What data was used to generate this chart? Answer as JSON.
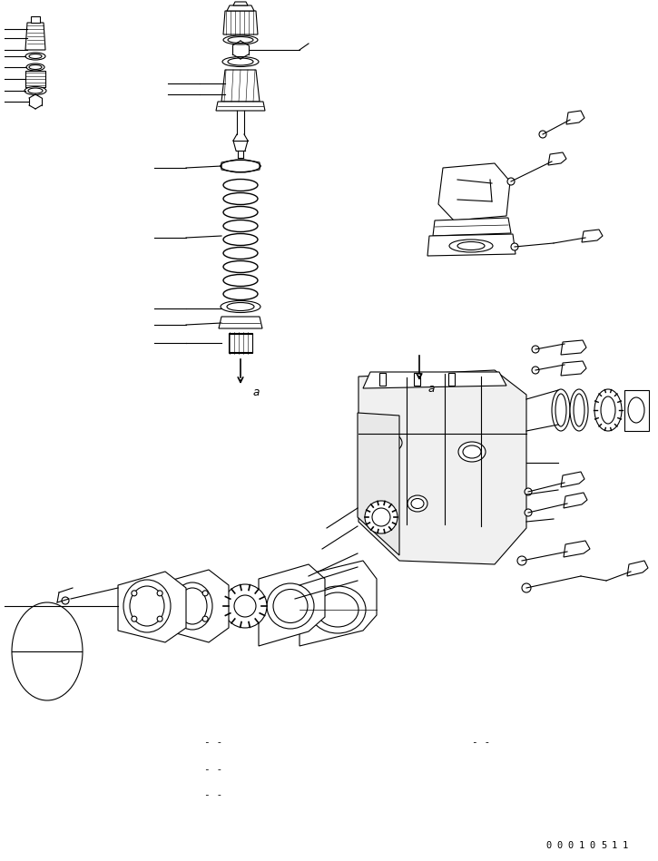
{
  "title": "",
  "background_color": "#ffffff",
  "line_color": "#000000",
  "fig_width": 7.25,
  "fig_height": 9.49,
  "dpi": 100,
  "serial_number": "00010511",
  "label_a1": "a",
  "label_a2": "a"
}
